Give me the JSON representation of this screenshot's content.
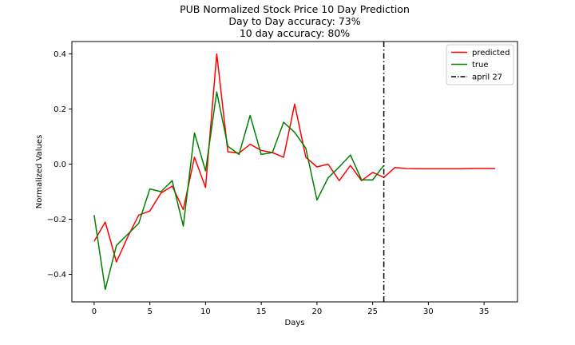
{
  "chart_data": {
    "type": "line",
    "title": "PUB Normalized Stock Price 10 Day Prediction",
    "subtitle_lines": [
      "Day to Day accuracy: 73%",
      "10 day accuracy: 80%"
    ],
    "xlabel": "Days",
    "ylabel": "Normalized Values",
    "xlim": [
      -2,
      38
    ],
    "ylim": [
      -0.5,
      0.445
    ],
    "xticks": [
      0,
      5,
      10,
      15,
      20,
      25,
      30,
      35
    ],
    "yticks": [
      -0.4,
      -0.2,
      0.0,
      0.2,
      0.4
    ],
    "ytick_labels": [
      "−0.4",
      "−0.2",
      "0.0",
      "0.2",
      "0.4"
    ],
    "grid": false,
    "legend_position": "top-right",
    "series": [
      {
        "name": "predicted",
        "color": "#ff0000",
        "x": [
          0,
          1,
          2,
          3,
          4,
          5,
          6,
          7,
          8,
          9,
          10,
          11,
          12,
          13,
          14,
          15,
          16,
          17,
          18,
          19,
          20,
          21,
          22,
          23,
          24,
          25,
          26,
          27,
          28,
          29,
          30,
          31,
          32,
          33,
          34,
          35,
          36
        ],
        "values": [
          -0.28,
          -0.21,
          -0.355,
          -0.265,
          -0.185,
          -0.17,
          -0.105,
          -0.08,
          -0.165,
          0.025,
          -0.085,
          0.4,
          0.045,
          0.04,
          0.072,
          0.05,
          0.042,
          0.025,
          0.218,
          0.025,
          -0.01,
          0.0,
          -0.06,
          -0.005,
          -0.06,
          -0.03,
          -0.048,
          -0.012,
          -0.016,
          -0.017,
          -0.017,
          -0.017,
          -0.017,
          -0.017,
          -0.016,
          -0.016,
          -0.016
        ]
      },
      {
        "name": "true",
        "color": "#008000",
        "x": [
          0,
          1,
          2,
          3,
          4,
          5,
          6,
          7,
          8,
          9,
          10,
          11,
          12,
          13,
          14,
          15,
          16,
          17,
          18,
          19,
          20,
          21,
          22,
          23,
          24,
          25,
          26
        ],
        "values": [
          -0.185,
          -0.455,
          -0.295,
          -0.255,
          -0.215,
          -0.09,
          -0.1,
          -0.06,
          -0.225,
          0.113,
          -0.025,
          0.262,
          0.065,
          0.035,
          0.177,
          0.035,
          0.042,
          0.152,
          0.115,
          0.058,
          -0.13,
          -0.05,
          -0.01,
          0.033,
          -0.057,
          -0.057,
          -0.005
        ]
      }
    ],
    "vline": {
      "name": "april 27",
      "x": 26,
      "color": "#000000",
      "style": "dash-dot"
    }
  }
}
